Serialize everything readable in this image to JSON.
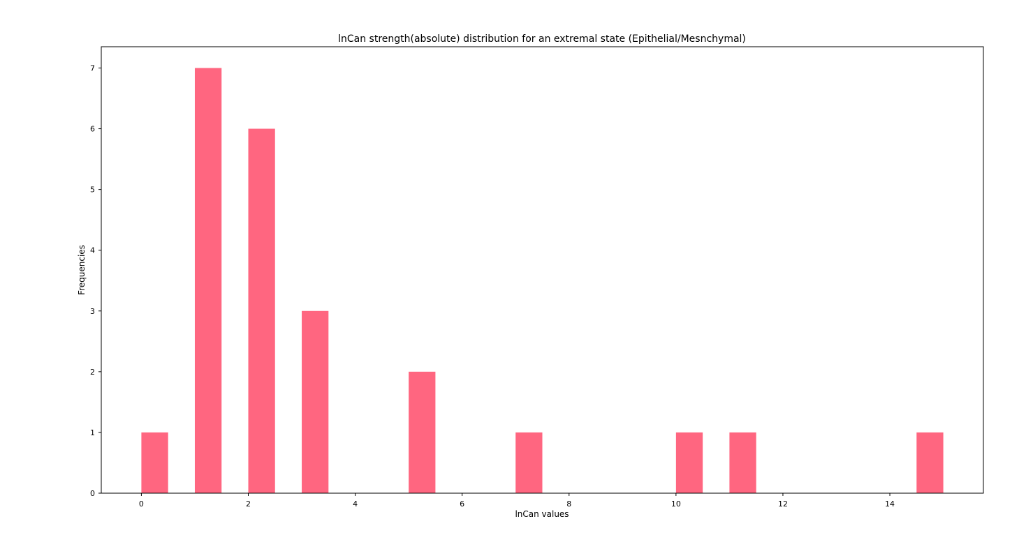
{
  "chart_data": {
    "type": "bar",
    "title": "lnCan strength(absolute) distribution for an extremal state (Epithelial/Mesnchymal)",
    "xlabel": "lnCan values",
    "ylabel": "Frequencies",
    "xlim": [
      -0.75,
      15.75
    ],
    "ylim": [
      0,
      7.35
    ],
    "xticks": [
      0,
      2,
      4,
      6,
      8,
      10,
      12,
      14
    ],
    "yticks": [
      0,
      1,
      2,
      3,
      4,
      5,
      6,
      7
    ],
    "bar_width": 0.5,
    "color": "#ff6680",
    "bars": [
      {
        "x": 0,
        "value": 1
      },
      {
        "x": 1,
        "value": 7
      },
      {
        "x": 2,
        "value": 6
      },
      {
        "x": 3,
        "value": 3
      },
      {
        "x": 5,
        "value": 2
      },
      {
        "x": 7,
        "value": 1
      },
      {
        "x": 10,
        "value": 1
      },
      {
        "x": 11,
        "value": 1
      },
      {
        "x": 14.5,
        "value": 1
      }
    ],
    "grid": false,
    "legend": false
  }
}
